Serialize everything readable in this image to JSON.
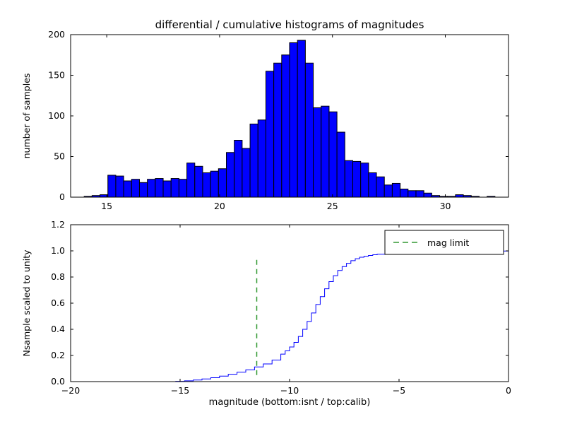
{
  "figure": {
    "title": "differential / cumulative histograms of magnitudes",
    "background": "#ffffff"
  },
  "chart_data": [
    {
      "type": "bar",
      "title": "differential / cumulative histograms of magnitudes",
      "ylabel": "number of samples",
      "xlim": [
        13.4,
        32.8
      ],
      "ylim": [
        0,
        200
      ],
      "xticks": [
        15,
        20,
        25,
        30
      ],
      "xtick_labels": [
        "15",
        "20",
        "25",
        "30"
      ],
      "yticks": [
        0,
        50,
        100,
        150,
        200
      ],
      "ytick_labels": [
        "0",
        "50",
        "100",
        "150",
        "200"
      ],
      "grid": false,
      "bin_start": 14.0,
      "bin_width": 0.35,
      "counts": [
        1,
        2,
        3,
        27,
        26,
        20,
        22,
        18,
        22,
        23,
        20,
        23,
        22,
        42,
        38,
        30,
        32,
        35,
        55,
        70,
        60,
        90,
        95,
        155,
        165,
        175,
        190,
        193,
        165,
        110,
        112,
        105,
        80,
        45,
        44,
        42,
        30,
        25,
        15,
        17,
        10,
        8,
        8,
        5,
        2,
        1,
        1,
        3,
        2,
        1,
        0,
        1
      ],
      "bar_color": "#0000ff",
      "bar_edge_color": "#000000"
    },
    {
      "type": "line",
      "step": true,
      "ylabel": "Nsample scaled to unity",
      "xlabel": "magnitude (bottom:isnt / top:calib)",
      "xlim": [
        -20,
        0
      ],
      "ylim": [
        0,
        1.2
      ],
      "xticks": [
        -20,
        -15,
        -10,
        -5,
        0
      ],
      "xtick_labels": [
        "−20",
        "−15",
        "−10",
        "−5",
        "0"
      ],
      "yticks": [
        0,
        0.2,
        0.4,
        0.6,
        0.8,
        1.0,
        1.2
      ],
      "ytick_labels": [
        "0.0",
        "0.2",
        "0.4",
        "0.6",
        "0.8",
        "1.0",
        "1.2"
      ],
      "grid": false,
      "line_color": "#0000ff",
      "x": [
        -20,
        -15.2,
        -14.8,
        -14.4,
        -14.0,
        -13.6,
        -13.2,
        -12.8,
        -12.4,
        -12.0,
        -11.6,
        -11.2,
        -10.8,
        -10.4,
        -10.2,
        -10.0,
        -9.8,
        -9.6,
        -9.4,
        -9.2,
        -9.0,
        -8.8,
        -8.6,
        -8.4,
        -8.2,
        -8.0,
        -7.8,
        -7.6,
        -7.4,
        -7.2,
        -7.0,
        -6.8,
        -6.6,
        -6.4,
        -6.2,
        -6.0,
        -5.6,
        -5.2,
        -4.8,
        -4.4,
        -4.0,
        -3.5,
        -3.0,
        -2.5,
        -2.0,
        -1.5,
        -1.0,
        -0.5,
        0
      ],
      "y": [
        0,
        0.002,
        0.006,
        0.012,
        0.02,
        0.03,
        0.042,
        0.056,
        0.072,
        0.09,
        0.112,
        0.135,
        0.165,
        0.21,
        0.235,
        0.265,
        0.3,
        0.345,
        0.4,
        0.46,
        0.525,
        0.59,
        0.65,
        0.71,
        0.765,
        0.81,
        0.85,
        0.88,
        0.905,
        0.925,
        0.94,
        0.951,
        0.959,
        0.965,
        0.97,
        0.974,
        0.978,
        0.981,
        0.984,
        0.986,
        0.988,
        0.99,
        0.992,
        0.994,
        0.995,
        0.997,
        0.998,
        0.999,
        1.0
      ],
      "vline": {
        "x": -11.5,
        "ymin": 0.05,
        "ymax": 0.95,
        "color": "#339933",
        "style": "dashed",
        "label": "mag limit"
      },
      "legend": {
        "label": "mag limit",
        "position": "upper right"
      }
    }
  ]
}
